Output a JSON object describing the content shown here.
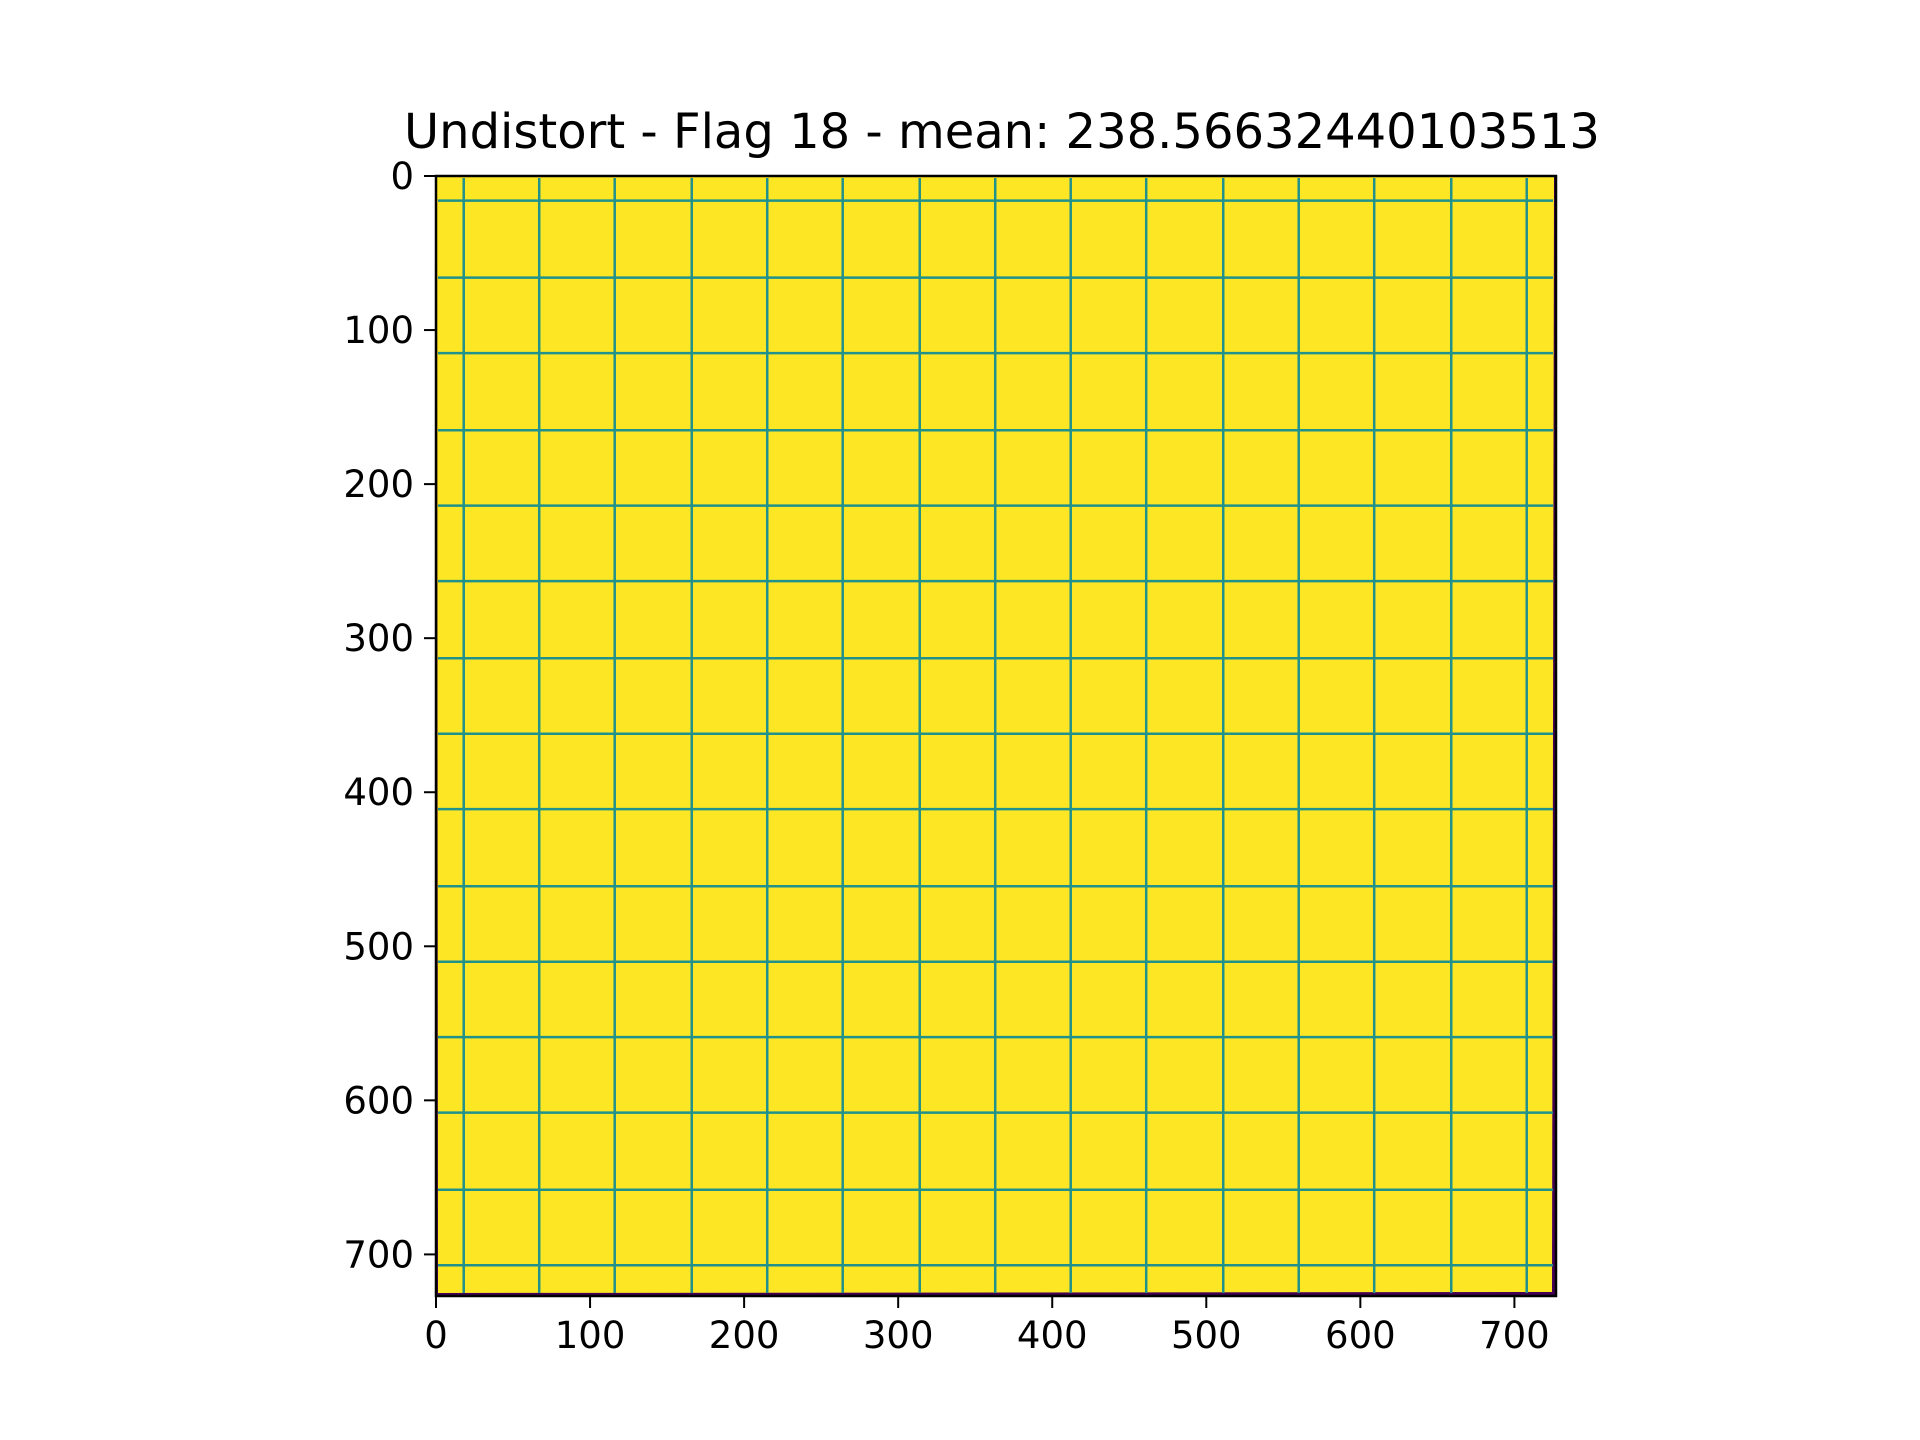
{
  "chart_data": {
    "type": "heatmap",
    "title": "Undistort - Flag 18 - mean: 238.56632440103513",
    "xlabel": "",
    "ylabel": "",
    "xlim": [
      0,
      727
    ],
    "ylim": [
      727,
      0
    ],
    "x_ticks": [
      0,
      100,
      200,
      300,
      400,
      500,
      600,
      700
    ],
    "y_ticks": [
      0,
      100,
      200,
      300,
      400,
      500,
      600,
      700
    ],
    "x_tick_labels": [
      "0",
      "100",
      "200",
      "300",
      "400",
      "500",
      "600",
      "700"
    ],
    "y_tick_labels": [
      "0",
      "100",
      "200",
      "300",
      "400",
      "500",
      "600",
      "700"
    ],
    "grid_lines_x": [
      18,
      67,
      116,
      166,
      215,
      264,
      314,
      363,
      412,
      461,
      511,
      560,
      609,
      659,
      708
    ],
    "grid_lines_y": [
      16,
      66,
      115,
      165,
      214,
      263,
      313,
      362,
      411,
      461,
      510,
      559,
      608,
      658,
      707
    ],
    "colors": {
      "fill": "#fde725",
      "grid": "#21918c",
      "edge": "#440154"
    }
  }
}
